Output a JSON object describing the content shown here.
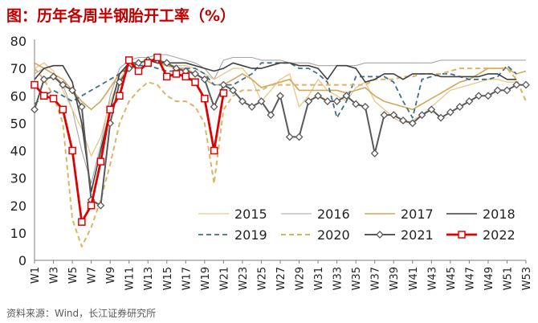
{
  "page": {
    "title": "图：历年各周半钢胎开工率（%）",
    "source": "资料来源：Wind，长江证券研究所"
  },
  "chart_data": {
    "type": "line",
    "title": "图：历年各周半钢胎开工率（%）",
    "xlabel": "",
    "ylabel": "",
    "ylim": [
      0,
      80
    ],
    "yticks": [
      0,
      10,
      20,
      30,
      40,
      50,
      60,
      70,
      80
    ],
    "grid": false,
    "legend_position": "lower-right",
    "categories": [
      "W1",
      "W2",
      "W3",
      "W4",
      "W5",
      "W6",
      "W7",
      "W8",
      "W9",
      "W10",
      "W11",
      "W12",
      "W13",
      "W14",
      "W15",
      "W16",
      "W17",
      "W18",
      "W19",
      "W20",
      "W21",
      "W22",
      "W23",
      "W24",
      "W25",
      "W26",
      "W27",
      "W28",
      "W29",
      "W30",
      "W31",
      "W32",
      "W33",
      "W34",
      "W35",
      "W36",
      "W37",
      "W38",
      "W39",
      "W40",
      "W41",
      "W42",
      "W43",
      "W44",
      "W45",
      "W46",
      "W47",
      "W48",
      "W49",
      "W50",
      "W51",
      "W52",
      "W53"
    ],
    "x_tick_labels": [
      "W1",
      "W3",
      "W5",
      "W7",
      "W9",
      "W11",
      "W13",
      "W15",
      "W17",
      "W19",
      "W21",
      "W23",
      "W25",
      "W27",
      "W29",
      "W31",
      "W33",
      "W35",
      "W37",
      "W39",
      "W41",
      "W43",
      "W45",
      "W47",
      "W49",
      "W51",
      "W53"
    ],
    "series": [
      {
        "name": "2015",
        "color": "#e6c88a",
        "style": "solid",
        "width": 1.3,
        "markers": false,
        "values": [
          70,
          72,
          69,
          62,
          55,
          48,
          38,
          45,
          58,
          66,
          71,
          72,
          73,
          72,
          71,
          71,
          71,
          70,
          68,
          66,
          68,
          70,
          70,
          66,
          58,
          62,
          66,
          68,
          56,
          60,
          66,
          62,
          60,
          58,
          63,
          65,
          58,
          55,
          52,
          50,
          51,
          53,
          56,
          59,
          62,
          63,
          64,
          65,
          66,
          66,
          65,
          65,
          null
        ]
      },
      {
        "name": "2016",
        "color": "#a6a6a6",
        "style": "solid",
        "width": 1.1,
        "markers": false,
        "values": [
          68,
          70,
          68,
          64,
          55,
          40,
          28,
          42,
          60,
          70,
          73,
          74,
          74,
          75,
          75,
          74,
          73,
          72,
          70,
          66,
          73,
          74,
          74,
          74,
          73,
          73,
          73,
          72,
          72,
          72,
          71,
          71,
          71,
          71,
          71,
          72,
          72,
          72,
          72,
          72,
          72,
          72,
          72,
          73,
          73,
          73,
          73,
          73,
          73,
          73,
          73,
          73,
          73
        ]
      },
      {
        "name": "2017",
        "color": "#d4a65a",
        "style": "solid",
        "width": 1.6,
        "markers": false,
        "values": [
          72,
          70,
          68,
          66,
          62,
          58,
          55,
          58,
          63,
          68,
          71,
          72,
          73,
          72,
          71,
          70,
          70,
          68,
          66,
          64,
          64,
          66,
          68,
          66,
          63,
          64,
          65,
          66,
          62,
          62,
          62,
          62,
          62,
          61,
          62,
          63,
          60,
          58,
          57,
          56,
          55,
          57,
          59,
          61,
          63,
          65,
          66,
          68,
          70,
          70,
          70,
          68,
          69
        ]
      },
      {
        "name": "2018",
        "color": "#404040",
        "style": "solid",
        "width": 1.6,
        "markers": false,
        "values": [
          66,
          70,
          71,
          71,
          65,
          50,
          25,
          40,
          55,
          68,
          72,
          72,
          73,
          72,
          72,
          72,
          72,
          71,
          70,
          69,
          70,
          72,
          71,
          70,
          70,
          71,
          72,
          72,
          71,
          71,
          70,
          66,
          71,
          71,
          70,
          65,
          66,
          68,
          68,
          66,
          68,
          68,
          68,
          67,
          67,
          67,
          67,
          67,
          68,
          68,
          66,
          66,
          null
        ]
      },
      {
        "name": "2019",
        "color": "#3d6f8e",
        "style": "dashed",
        "width": 1.8,
        "markers": false,
        "values": [
          57,
          60,
          62,
          60,
          58,
          60,
          62,
          64,
          66,
          68,
          70,
          71,
          71,
          70,
          69,
          69,
          70,
          70,
          68,
          64,
          64,
          64,
          66,
          68,
          72,
          72,
          72,
          72,
          70,
          70,
          68,
          65,
          52,
          58,
          67,
          67,
          67,
          67,
          65,
          58,
          52,
          66,
          67,
          68,
          68,
          67,
          66,
          66,
          66,
          67,
          71,
          68,
          null
        ]
      },
      {
        "name": "2020",
        "color": "#dbb466",
        "style": "dashed",
        "width": 2.0,
        "markers": false,
        "values": [
          70,
          66,
          60,
          50,
          15,
          5,
          12,
          22,
          35,
          50,
          58,
          62,
          65,
          64,
          60,
          58,
          58,
          56,
          50,
          28,
          55,
          60,
          62,
          62,
          62,
          64,
          64,
          64,
          64,
          64,
          64,
          64,
          64,
          64,
          64,
          64,
          66,
          66,
          66,
          67,
          67,
          68,
          68,
          68,
          69,
          70,
          70,
          70,
          70,
          70,
          70,
          66,
          58
        ]
      },
      {
        "name": "2021",
        "color": "#595959",
        "style": "solid",
        "width": 2.0,
        "markers": true,
        "marker": "diamond",
        "values": [
          55,
          66,
          67,
          64,
          62,
          56,
          22,
          20,
          50,
          65,
          70,
          72,
          73,
          73,
          72,
          70,
          69,
          68,
          66,
          56,
          64,
          62,
          58,
          56,
          58,
          53,
          60,
          45,
          45,
          58,
          60,
          58,
          58,
          60,
          57,
          56,
          39,
          53,
          53,
          51,
          50,
          53,
          55,
          52,
          54,
          56,
          58,
          60,
          60,
          62,
          62,
          64,
          64
        ]
      },
      {
        "name": "2022",
        "color": "#e00000",
        "style": "solid",
        "width": 2.8,
        "markers": true,
        "marker": "square",
        "values": [
          64,
          60,
          59,
          55,
          40,
          14,
          20,
          36,
          55,
          60,
          73,
          69,
          72,
          74,
          67,
          68,
          67,
          65,
          59,
          40,
          61,
          null,
          null,
          null,
          null,
          null,
          null,
          null,
          null,
          null,
          null,
          null,
          null,
          null,
          null,
          null,
          null,
          null,
          null,
          null,
          null,
          null,
          null,
          null,
          null,
          null,
          null,
          null,
          null,
          null,
          null,
          null,
          null
        ]
      }
    ]
  }
}
